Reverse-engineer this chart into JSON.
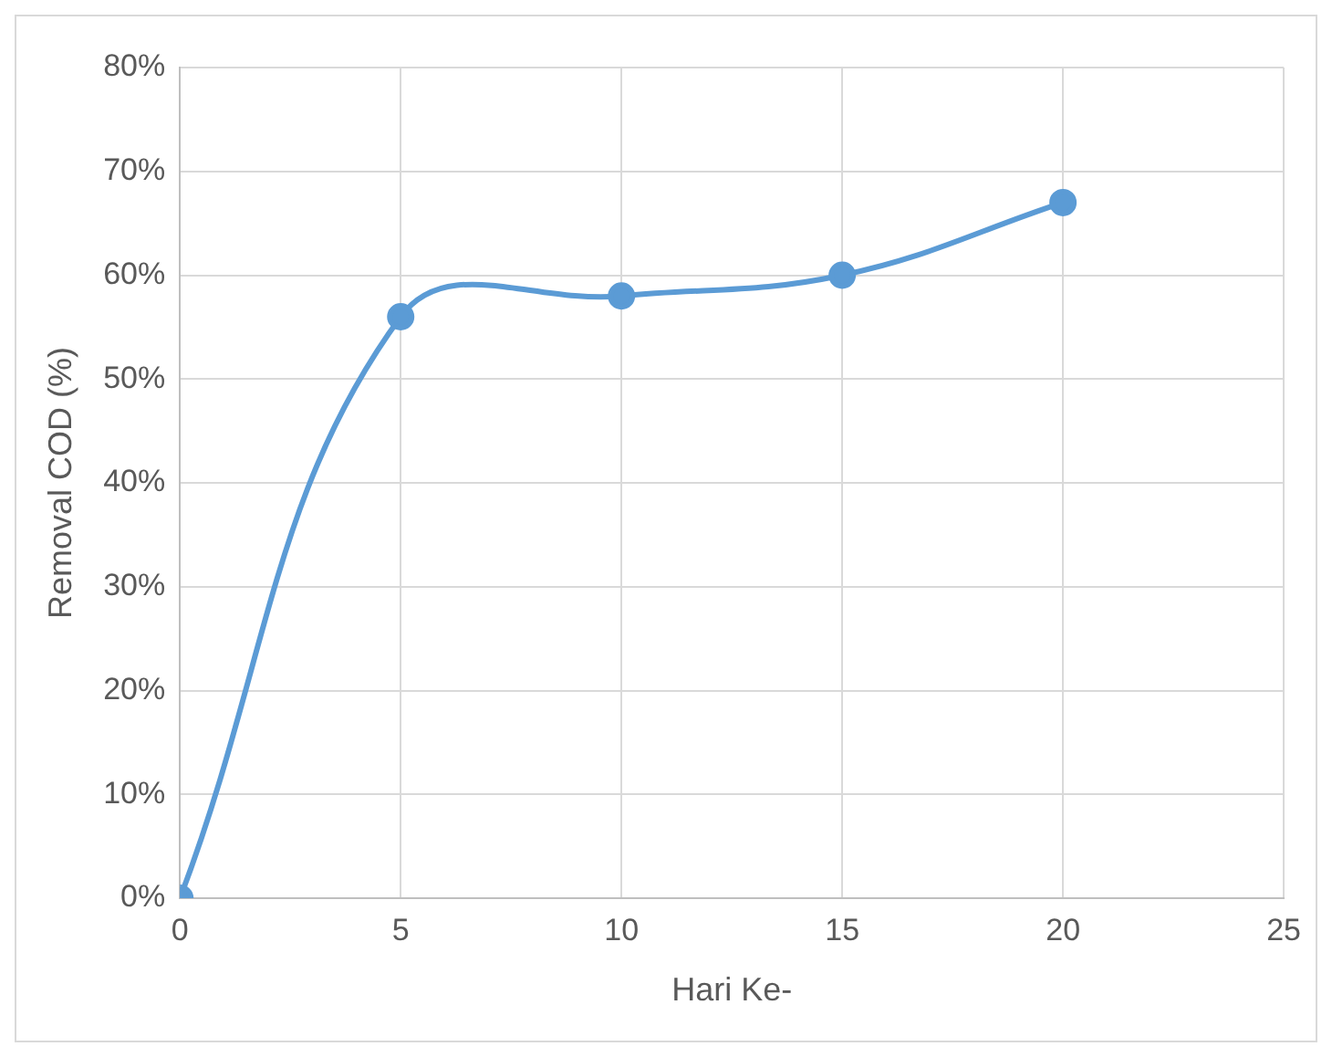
{
  "chart_data": {
    "type": "line",
    "xlabel": "Hari Ke-",
    "ylabel": "Removal COD (%)",
    "x": [
      0,
      5,
      10,
      15,
      20
    ],
    "series": [
      {
        "color": "#5b9bd5",
        "values": [
          0,
          56,
          58,
          60,
          67
        ]
      }
    ],
    "xlim": [
      0,
      25
    ],
    "xticks": [
      0,
      5,
      10,
      15,
      20,
      25
    ],
    "ylim": [
      0,
      80
    ],
    "yticks": [
      {
        "value": 0,
        "label": "0%"
      },
      {
        "value": 10,
        "label": "10%"
      },
      {
        "value": 20,
        "label": "20%"
      },
      {
        "value": 30,
        "label": "30%"
      },
      {
        "value": 40,
        "label": "40%"
      },
      {
        "value": 50,
        "label": "50%"
      },
      {
        "value": 60,
        "label": "60%"
      },
      {
        "value": 70,
        "label": "70%"
      },
      {
        "value": 80,
        "label": "80%"
      }
    ],
    "grid": true,
    "legend": false,
    "marker": "circle",
    "line_style": "solid"
  }
}
